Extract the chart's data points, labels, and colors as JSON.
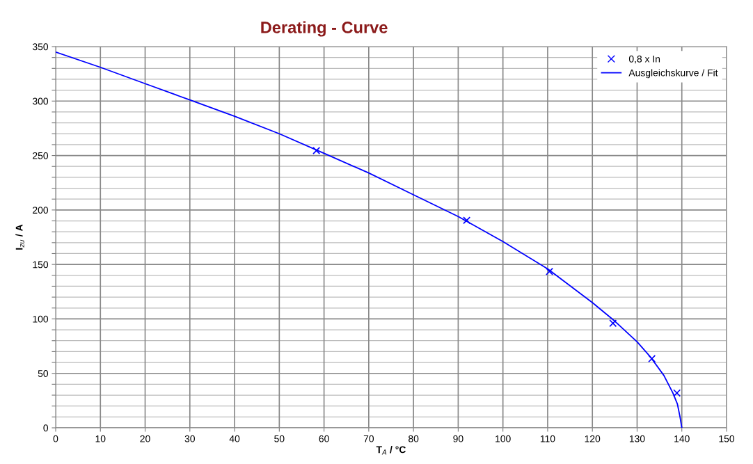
{
  "chart_data": {
    "type": "line",
    "title": "Derating - Curve",
    "xlabel": "T$_{A}$ / °C",
    "ylabel": "I$_{zu}$ / A",
    "series": [
      {
        "name": "0,8 x In",
        "type": "scatter",
        "marker": "cross",
        "color": "#0000ff",
        "x": [
          58.3,
          91.9,
          110.4,
          124.6,
          133.3,
          138.9
        ],
        "values": [
          254.5,
          190.5,
          143.5,
          96,
          63.5,
          32
        ]
      },
      {
        "name": "Ausgleichskurve / Fit",
        "marker": "none",
        "color": "#0000ff",
        "x": [
          0,
          10,
          20,
          30,
          40,
          50,
          60,
          70,
          80,
          90,
          100,
          110,
          120,
          125,
          130,
          133,
          136,
          138,
          139,
          139.6,
          140
        ],
        "values": [
          345,
          331,
          316,
          301,
          286,
          270,
          252,
          234,
          214,
          194,
          171,
          146,
          115,
          98,
          79,
          65,
          48,
          32,
          22,
          10,
          0
        ]
      }
    ],
    "xlim": [
      0,
      150
    ],
    "xticks": [
      0,
      10,
      20,
      30,
      40,
      50,
      60,
      70,
      80,
      90,
      100,
      110,
      120,
      130,
      140,
      150
    ],
    "ylim": [
      0,
      350
    ],
    "yticks": [
      0,
      {
        "value": 10,
        "label": null
      },
      {
        "value": 20,
        "label": null
      },
      {
        "value": 30,
        "label": null
      },
      {
        "value": 40,
        "label": null
      },
      50,
      {
        "value": 60,
        "label": null
      },
      {
        "value": 70,
        "label": null
      },
      {
        "value": 80,
        "label": null
      },
      {
        "value": 90,
        "label": null
      },
      100,
      {
        "value": 110,
        "label": null
      },
      {
        "value": 120,
        "label": null
      },
      {
        "value": 130,
        "label": null
      },
      {
        "value": 140,
        "label": null
      },
      150,
      {
        "value": 160,
        "label": null
      },
      {
        "value": 170,
        "label": null
      },
      {
        "value": 180,
        "label": null
      },
      {
        "value": 190,
        "label": null
      },
      200,
      {
        "value": 210,
        "label": null
      },
      {
        "value": 220,
        "label": null
      },
      {
        "value": 230,
        "label": null
      },
      {
        "value": 240,
        "label": null
      },
      250,
      {
        "value": 260,
        "label": null
      },
      {
        "value": 270,
        "label": null
      },
      {
        "value": 280,
        "label": null
      },
      {
        "value": 290,
        "label": null
      },
      300,
      {
        "value": 310,
        "label": null
      },
      {
        "value": 320,
        "label": null
      },
      {
        "value": 330,
        "label": null
      },
      {
        "value": 340,
        "label": null
      },
      350
    ],
    "grid": true,
    "legend": "top right"
  }
}
